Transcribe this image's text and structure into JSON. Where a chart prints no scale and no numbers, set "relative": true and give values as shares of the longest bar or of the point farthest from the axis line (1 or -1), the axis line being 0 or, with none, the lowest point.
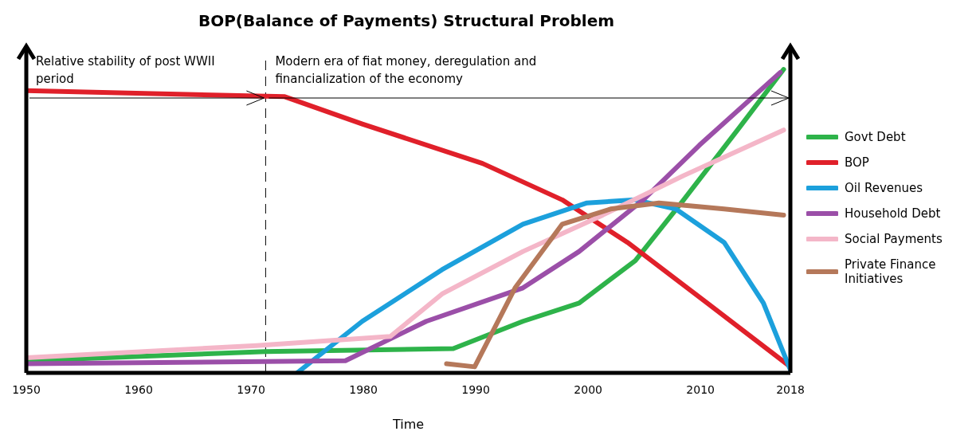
{
  "chart_data": {
    "type": "line",
    "title": "BOP(Balance of Payments) Structural Problem",
    "xlabel": "Time",
    "relative": true,
    "xlim": [
      1950,
      2018
    ],
    "xticks": [
      1950,
      1960,
      1970,
      1980,
      1990,
      2000,
      2010,
      2018
    ],
    "legend": "right",
    "grid": false,
    "marker": "none",
    "line_style": "solid",
    "ref_lines": [
      {
        "axis": "x",
        "value": 1971.3,
        "label": null,
        "line_style": "dashed",
        "color": "#000000"
      }
    ],
    "annotations": [
      "Relative stability of post WWII period",
      "Modern era of fiat money, deregulation and financialization of the economy"
    ],
    "series": [
      {
        "name": "Govt Debt",
        "color": "#2eb34a",
        "x": [
          1950,
          1971.3,
          1988,
          1994.2,
          1999.2,
          2004.2,
          2008.5,
          2013.5,
          2017.4
        ],
        "values": [
          0.04,
          0.07,
          0.08,
          0.17,
          0.23,
          0.37,
          0.57,
          0.81,
          1
        ]
      },
      {
        "name": "BOP",
        "color": "#e0202a",
        "x": [
          1950,
          1973,
          1979.9,
          1990.6,
          1997.7,
          2003.5,
          2010.6,
          2018
        ],
        "values": [
          0.93,
          0.91,
          0.82,
          0.69,
          0.57,
          0.43,
          0.23,
          0.02
        ]
      },
      {
        "name": "Oil Revenues",
        "color": "#1ca0dc",
        "x": [
          1974.1,
          1979.9,
          1987,
          1994.2,
          1999.9,
          2004.2,
          2007.8,
          2012.1,
          2015.6,
          2018
        ],
        "values": [
          0,
          0.17,
          0.34,
          0.49,
          0.56,
          0.57,
          0.54,
          0.43,
          0.23,
          0.01
        ]
      },
      {
        "name": "Household Debt",
        "color": "#9b4fa8",
        "x": [
          1950,
          1978.4,
          1985.6,
          1994.2,
          1999.2,
          2004.9,
          2009.9,
          2017.1
        ],
        "values": [
          0.03,
          0.04,
          0.17,
          0.28,
          0.4,
          0.57,
          0.75,
          0.99
        ]
      },
      {
        "name": "Social Payments",
        "color": "#f4b6c8",
        "x": [
          1950,
          1970.5,
          1982.4,
          1987,
          1994.2,
          2001.3,
          2008.5,
          2017.4
        ],
        "values": [
          0.05,
          0.09,
          0.12,
          0.26,
          0.4,
          0.52,
          0.65,
          0.8
        ]
      },
      {
        "name": "Private Finance Initiatives",
        "color": "#b5785a",
        "x": [
          1987.4,
          1989.9,
          1993.5,
          1997.7,
          2002,
          2006.3,
          2012.1,
          2017.4
        ],
        "values": [
          0.03,
          0.02,
          0.28,
          0.49,
          0.54,
          0.56,
          0.54,
          0.52
        ]
      }
    ]
  }
}
